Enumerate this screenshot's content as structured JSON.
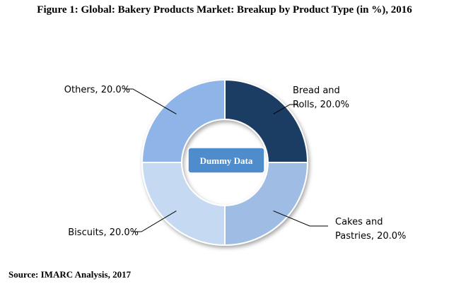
{
  "figure": {
    "title": "Figure 1:  Global: Bakery Products Market: Breakup by Product Type (in %), 2016",
    "source": "Source: IMARC Analysis, 2017"
  },
  "chart_data": {
    "type": "pie",
    "variant": "donut",
    "center_label": "Dummy Data",
    "slices": [
      {
        "label": "Bread and Rolls",
        "value": 20.0,
        "color": "#1f3d63",
        "label_lines": [
          "Bread and",
          "Rolls, 20.0%"
        ]
      },
      {
        "label": "Cakes and Pastries",
        "value": 20.0,
        "color": "#9fbde4",
        "label_lines": [
          "Cakes and",
          "Pastries, 20.0%"
        ]
      },
      {
        "label": "Biscuits",
        "value": 20.0,
        "color": "#c5daf2",
        "label_lines": [
          "Biscuits, 20.0%"
        ]
      },
      {
        "label": "Others",
        "value": 20.0,
        "color": "#8fb4e8",
        "label_lines": [
          "Others, 20.0%"
        ]
      }
    ],
    "colors": {
      "center_box": "#4f8ccb",
      "center_text": "#ffffff"
    }
  }
}
